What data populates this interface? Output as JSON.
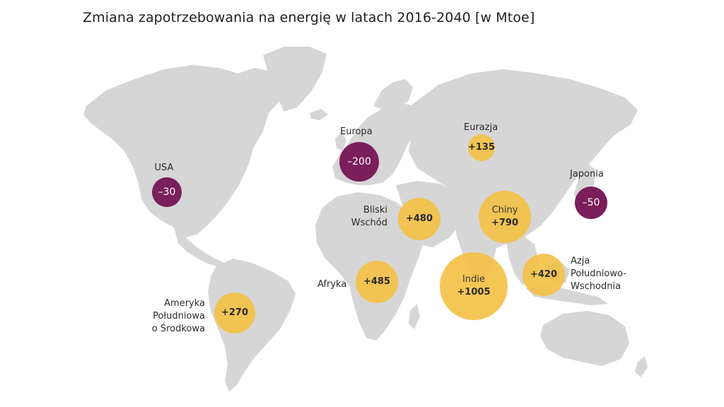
{
  "title": "Zmiana zapotrzebowania na energię w latach 2016-2040 [w Mtoe]",
  "colors": {
    "increase": "#f4c24a",
    "decrease": "#7a1e5c",
    "land": "#d6d6d6"
  },
  "regions": {
    "usa": {
      "name": "USA",
      "value": "–30"
    },
    "europe": {
      "name": "Europa",
      "value": "–200"
    },
    "eurasia": {
      "name": "Eurazja",
      "value": "+135"
    },
    "japan": {
      "name": "Japonia",
      "value": "–50"
    },
    "middle_east": {
      "name_lines": [
        "Bliski",
        "Wschód"
      ],
      "value": "+480"
    },
    "china": {
      "name": "Chiny",
      "value": "+790"
    },
    "africa": {
      "name": "Afryka",
      "value": "+485"
    },
    "india": {
      "name": "Indie",
      "value": "+1005"
    },
    "sea": {
      "name_lines": [
        "Azja",
        "Południowo-",
        "Wschodnia"
      ],
      "value": "+420"
    },
    "latam": {
      "name_lines": [
        "Ameryka",
        "Południowa",
        "o Środkowa"
      ],
      "value": "+270"
    }
  }
}
